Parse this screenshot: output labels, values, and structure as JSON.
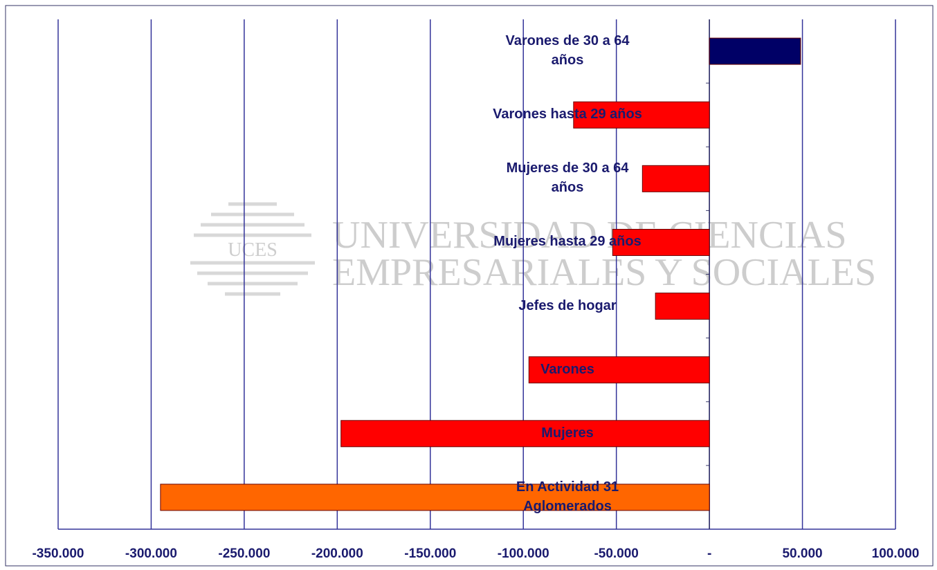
{
  "chart_data": {
    "type": "barh",
    "categories": [
      "En Actividad 31\nAglomerados",
      "Mujeres",
      "Varones",
      "Jefes de hogar",
      "Mujeres hasta 29 años",
      "Mujeres de 30 a 64\naños",
      "Varones hasta 29 años",
      "Varones de 30 a 64\naños"
    ],
    "values": [
      -295000,
      -198000,
      -97000,
      -29000,
      -52000,
      -36000,
      -73000,
      49000
    ],
    "colors": [
      "#ff6600",
      "#ff0000",
      "#ff0000",
      "#ff0000",
      "#ff0000",
      "#ff0000",
      "#ff0000",
      "#000066"
    ],
    "xlim": [
      -350000,
      100000
    ],
    "xticks": [
      {
        "value": -350000,
        "label": "-350.000"
      },
      {
        "value": -300000,
        "label": "-300.000"
      },
      {
        "value": -250000,
        "label": "-250.000"
      },
      {
        "value": -200000,
        "label": "-200.000"
      },
      {
        "value": -150000,
        "label": "-150.000"
      },
      {
        "value": -100000,
        "label": "-100.000"
      },
      {
        "value": -50000,
        "label": "-50.000"
      },
      {
        "value": 0,
        "label": "-"
      },
      {
        "value": 50000,
        "label": "50.000"
      },
      {
        "value": 100000,
        "label": "100.000"
      }
    ],
    "grid": true,
    "watermark": {
      "logo": "UCES",
      "line1": "UNIVERSIDAD DE CIENCIAS",
      "line2": "EMPRESARIALES Y SOCIALES"
    }
  }
}
